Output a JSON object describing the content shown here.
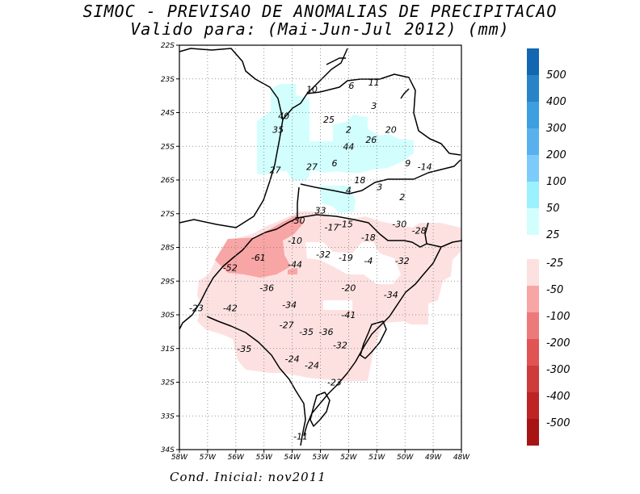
{
  "title_line1": "SIMOC - PREVISAO DE ANOMALIAS DE PRECIPITACAO",
  "title_line2": "Valido para: (Mai-Jun-Jul 2012) (mm)",
  "footer": "Cond. Inicial: nov2011",
  "lat_labels": [
    "22S",
    "23S",
    "24S",
    "25S",
    "26S",
    "27S",
    "28S",
    "29S",
    "30S",
    "31S",
    "32S",
    "33S",
    "34S"
  ],
  "lon_labels": [
    "58W",
    "57W",
    "56W",
    "55W",
    "54W",
    "53W",
    "52W",
    "51W",
    "50W",
    "49W",
    "48W"
  ],
  "colors": {
    "pos": [
      "#d2fffe",
      "#9cf1ff",
      "#7dcbfa",
      "#58b1ec",
      "#3c9fdf",
      "#2884c6",
      "#1367b0"
    ],
    "neg": [
      "#fde1e1",
      "#f8a5a5",
      "#ec7a7a",
      "#e15454",
      "#cf3a3a",
      "#be2424",
      "#a81414"
    ]
  },
  "legend_pos_labels": [
    "500",
    "400",
    "300",
    "200",
    "100",
    "50",
    "25"
  ],
  "legend_neg_labels": [
    "-25",
    "-50",
    "-100",
    "-200",
    "-300",
    "-400",
    "-500"
  ],
  "values": [
    {
      "t": "10",
      "lon": -53.3,
      "lat": -23.3
    },
    {
      "t": "6",
      "lon": -51.9,
      "lat": -23.2
    },
    {
      "t": "11",
      "lon": -51.1,
      "lat": -23.1
    },
    {
      "t": "3",
      "lon": -51.1,
      "lat": -23.8
    },
    {
      "t": "40",
      "lon": -54.3,
      "lat": -24.1
    },
    {
      "t": "25",
      "lon": -52.7,
      "lat": -24.2
    },
    {
      "t": "2",
      "lon": -52.0,
      "lat": -24.5
    },
    {
      "t": "20",
      "lon": -50.5,
      "lat": -24.5
    },
    {
      "t": "35",
      "lon": -54.5,
      "lat": -24.5
    },
    {
      "t": "26",
      "lon": -51.2,
      "lat": -24.8
    },
    {
      "t": "44",
      "lon": -52.0,
      "lat": -25.0
    },
    {
      "t": "27",
      "lon": -54.6,
      "lat": -25.7
    },
    {
      "t": "27",
      "lon": -53.3,
      "lat": -25.6
    },
    {
      "t": "6",
      "lon": -52.5,
      "lat": -25.5
    },
    {
      "t": "9",
      "lon": -49.9,
      "lat": -25.5
    },
    {
      "t": "-14",
      "lon": -49.3,
      "lat": -25.6
    },
    {
      "t": "18",
      "lon": -51.6,
      "lat": -26.0
    },
    {
      "t": "3",
      "lon": -50.9,
      "lat": -26.2
    },
    {
      "t": "4",
      "lon": -52.0,
      "lat": -26.3
    },
    {
      "t": "2",
      "lon": -50.1,
      "lat": -26.5
    },
    {
      "t": "33",
      "lon": -53.0,
      "lat": -26.9
    },
    {
      "t": "-30",
      "lon": -53.8,
      "lat": -27.2
    },
    {
      "t": "-17",
      "lon": -52.6,
      "lat": -27.4
    },
    {
      "t": "-15",
      "lon": -52.1,
      "lat": -27.3
    },
    {
      "t": "-30",
      "lon": -50.2,
      "lat": -27.3
    },
    {
      "t": "-28",
      "lon": -49.5,
      "lat": -27.5
    },
    {
      "t": "-10",
      "lon": -53.9,
      "lat": -27.8
    },
    {
      "t": "-18",
      "lon": -51.3,
      "lat": -27.7
    },
    {
      "t": "-61",
      "lon": -55.2,
      "lat": -28.3
    },
    {
      "t": "-32",
      "lon": -52.9,
      "lat": -28.2
    },
    {
      "t": "-19",
      "lon": -52.1,
      "lat": -28.3
    },
    {
      "t": "-44",
      "lon": -53.9,
      "lat": -28.5
    },
    {
      "t": "-4",
      "lon": -51.3,
      "lat": -28.4
    },
    {
      "t": "-32",
      "lon": -50.1,
      "lat": -28.4
    },
    {
      "t": "-52",
      "lon": -56.2,
      "lat": -28.6
    },
    {
      "t": "-36",
      "lon": -54.9,
      "lat": -29.2
    },
    {
      "t": "-20",
      "lon": -52.0,
      "lat": -29.2
    },
    {
      "t": "-34",
      "lon": -50.5,
      "lat": -29.4
    },
    {
      "t": "-34",
      "lon": -54.1,
      "lat": -29.7
    },
    {
      "t": "-23",
      "lon": -57.4,
      "lat": -29.8
    },
    {
      "t": "-42",
      "lon": -56.2,
      "lat": -29.8
    },
    {
      "t": "-41",
      "lon": -52.0,
      "lat": -30.0
    },
    {
      "t": "-27",
      "lon": -54.2,
      "lat": -30.3
    },
    {
      "t": "-35",
      "lon": -53.5,
      "lat": -30.5
    },
    {
      "t": "-36",
      "lon": -52.8,
      "lat": -30.5
    },
    {
      "t": "-32",
      "lon": -52.3,
      "lat": -30.9
    },
    {
      "t": "-35",
      "lon": -55.7,
      "lat": -31.0
    },
    {
      "t": "-24",
      "lon": -54.0,
      "lat": -31.3
    },
    {
      "t": "-24",
      "lon": -53.3,
      "lat": -31.5
    },
    {
      "t": "-23",
      "lon": -52.5,
      "lat": -32.0
    },
    {
      "t": "-11",
      "lon": -53.7,
      "lat": -33.6
    }
  ]
}
